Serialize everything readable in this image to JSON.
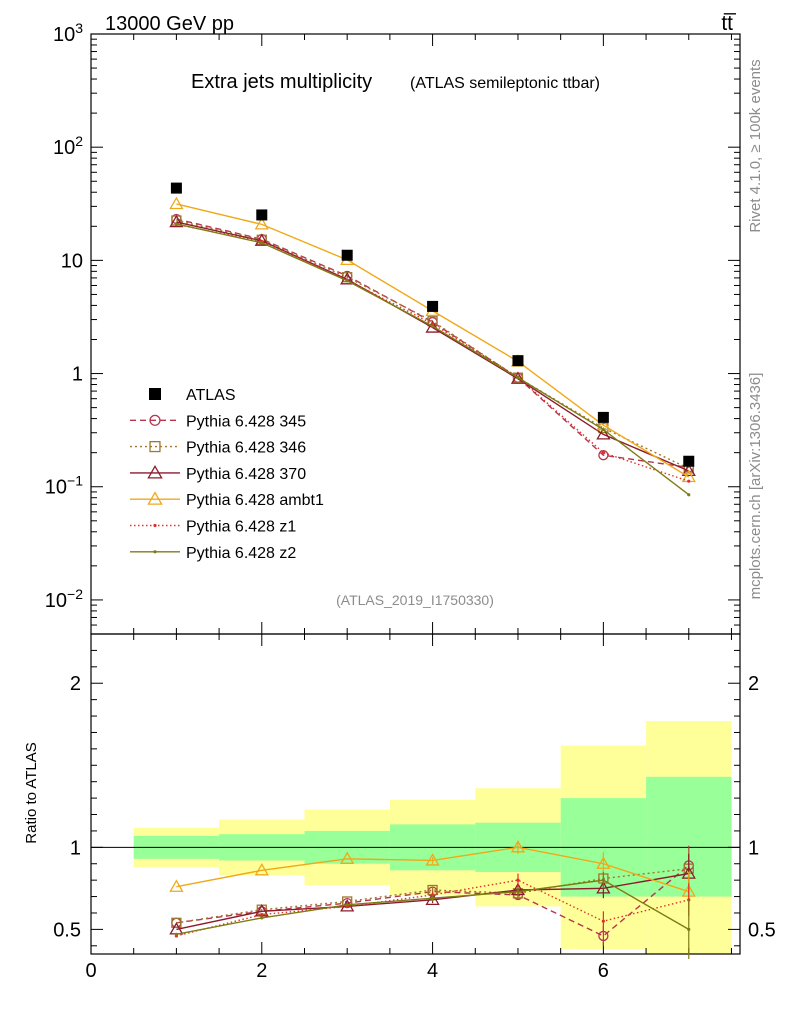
{
  "header": {
    "energy": "13000 GeV pp",
    "process": "tt̅"
  },
  "side": {
    "rivet": "Rivet 4.1.0, ≥ 100k events",
    "mcplots": "mcplots.cern.ch [arXiv:1306.3436]"
  },
  "chart_data": {
    "type": "scatter",
    "title": "Extra jets multiplicity",
    "subtitle": "(ATLAS semileptonic ttbar)",
    "analysis": "(ATLAS_2019_I1750330)",
    "xlabel": "",
    "ylabel": "",
    "ratio_ylabel": "Ratio to ATLAS",
    "xlim": [
      0,
      7.6
    ],
    "ylim_log": [
      0.005,
      1000
    ],
    "ratio_ylim": [
      0.35,
      2.3
    ],
    "x_ticks": [
      "0",
      "2",
      "4",
      "6"
    ],
    "y_ticks": [
      "10^-2",
      "10^-1",
      "1",
      "10",
      "10^2",
      "10^3"
    ],
    "ratio_ticks": [
      "0.5",
      "1",
      "2"
    ],
    "x": [
      1,
      2,
      3,
      4,
      5,
      6,
      7
    ],
    "data": {
      "name": "ATLAS",
      "values": [
        43.5,
        25.2,
        11.1,
        3.92,
        1.3,
        0.41,
        0.168
      ]
    },
    "band_edges": [
      0.5,
      1.5,
      2.5,
      3.5,
      4.5,
      5.5,
      6.5,
      7.5
    ],
    "band_green": [
      [
        0.93,
        1.07
      ],
      [
        0.92,
        1.08
      ],
      [
        0.9,
        1.1
      ],
      [
        0.86,
        1.14
      ],
      [
        0.85,
        1.15
      ],
      [
        0.7,
        1.3
      ],
      [
        0.7,
        1.43
      ]
    ],
    "band_yellow": [
      [
        0.88,
        1.12
      ],
      [
        0.83,
        1.17
      ],
      [
        0.77,
        1.23
      ],
      [
        0.71,
        1.29
      ],
      [
        0.64,
        1.36
      ],
      [
        0.38,
        1.62
      ],
      [
        0.35,
        1.77
      ]
    ],
    "series": [
      {
        "name": "Pythia 6.428 345",
        "color": "#b5364e",
        "dash": "6,4",
        "marker": "circle",
        "values": [
          23.2,
          15.4,
          7.3,
          2.85,
          0.92,
          0.19,
          0.148
        ],
        "ratio": [
          0.54,
          0.61,
          0.66,
          0.73,
          0.71,
          0.46,
          0.89
        ],
        "ratio_err": [
          0.01,
          0.01,
          0.01,
          0.02,
          0.03,
          0.06,
          0.12
        ]
      },
      {
        "name": "Pythia 6.428 346",
        "color": "#a0772e",
        "dash": "2,3",
        "marker": "square",
        "values": [
          22.5,
          15.2,
          7.1,
          2.9,
          0.92,
          0.33,
          0.145
        ],
        "ratio": [
          0.54,
          0.62,
          0.67,
          0.74,
          0.72,
          0.81,
          0.87
        ],
        "ratio_err": [
          0.01,
          0.01,
          0.01,
          0.02,
          0.03,
          0.05,
          0.12
        ]
      },
      {
        "name": "Pythia 6.428 370",
        "color": "#8c1c2c",
        "dash": "",
        "marker": "triangle",
        "values": [
          21.8,
          14.9,
          6.8,
          2.55,
          0.9,
          0.29,
          0.138
        ],
        "ratio": [
          0.5,
          0.61,
          0.64,
          0.68,
          0.74,
          0.75,
          0.84
        ],
        "ratio_err": [
          0.01,
          0.01,
          0.01,
          0.02,
          0.03,
          0.06,
          0.12
        ]
      },
      {
        "name": "Pythia 6.428 ambt1",
        "color": "#f0a818",
        "dash": "",
        "marker": "triangle",
        "values": [
          31.5,
          20.8,
          10.1,
          3.58,
          1.28,
          0.35,
          0.122
        ],
        "ratio": [
          0.76,
          0.86,
          0.93,
          0.92,
          1.0,
          0.9,
          0.73
        ],
        "ratio_err": [
          0.01,
          0.01,
          0.01,
          0.02,
          0.04,
          0.07,
          0.12
        ]
      },
      {
        "name": "Pythia 6.428 z1",
        "color": "#e03028",
        "dash": "1.5,2.5",
        "marker": "dot",
        "values": [
          20.8,
          14.7,
          6.7,
          2.75,
          0.93,
          0.2,
          0.112
        ],
        "ratio": [
          0.46,
          0.59,
          0.64,
          0.71,
          0.8,
          0.55,
          0.68
        ],
        "ratio_err": [
          0.01,
          0.01,
          0.01,
          0.02,
          0.04,
          0.06,
          0.1
        ]
      },
      {
        "name": "Pythia 6.428 z2",
        "color": "#7d7d14",
        "dash": "",
        "marker": "dot",
        "values": [
          21.0,
          14.3,
          6.6,
          2.62,
          0.92,
          0.32,
          0.085
        ],
        "ratio": [
          0.47,
          0.57,
          0.65,
          0.69,
          0.73,
          0.8,
          0.5
        ],
        "ratio_err": [
          0.01,
          0.01,
          0.01,
          0.02,
          0.03,
          0.05,
          0.18
        ]
      }
    ]
  }
}
